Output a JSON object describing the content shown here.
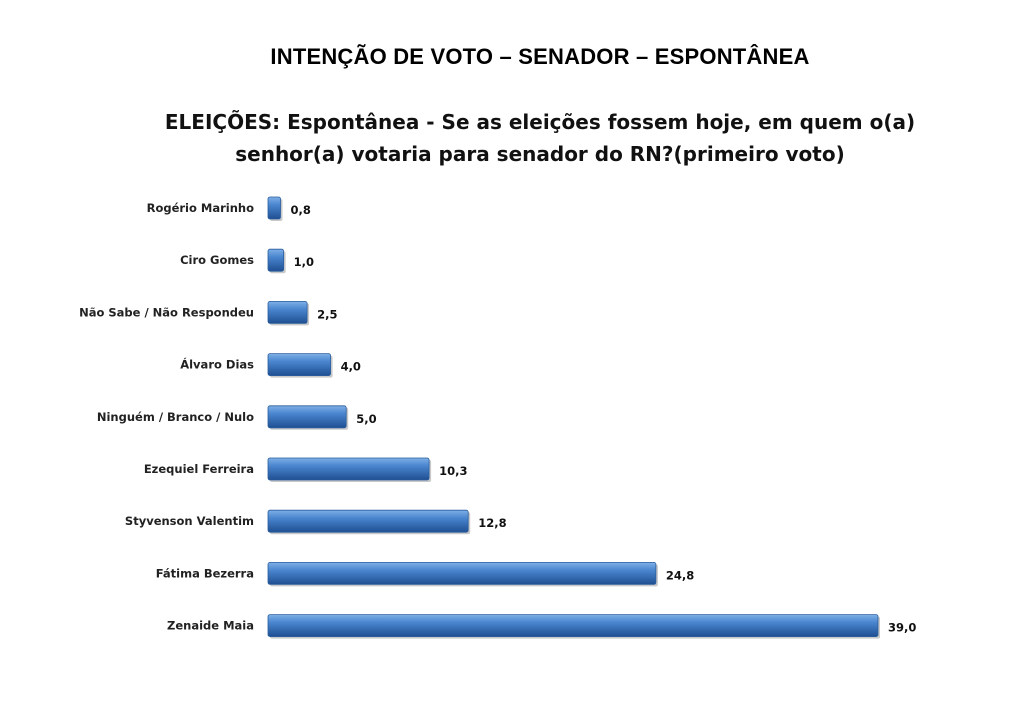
{
  "title": "INTENÇÃO DE VOTO – SENADOR – ESPONTÂNEA",
  "subtitle_line1": "ELEIÇÕES: Espontânea - Se as eleições fossem hoje, em quem o(a)",
  "subtitle_line2": "senhor(a) votaria para senador do RN?(primeiro voto)",
  "chart_data": {
    "type": "bar",
    "orientation": "horizontal",
    "categories": [
      "Rogério Marinho",
      "Ciro Gomes",
      "Não Sabe / Não Respondeu",
      "Álvaro Dias",
      "Ninguém / Branco / Nulo",
      "Ezequiel Ferreira",
      "Styvenson Valentim",
      "Fátima Bezerra",
      "Zenaide Maia"
    ],
    "values": [
      0.8,
      1.0,
      2.5,
      4.0,
      5.0,
      10.3,
      12.8,
      24.8,
      39.0
    ],
    "value_labels": [
      "0,8",
      "1,0",
      "2,5",
      "4,0",
      "5,0",
      "10,3",
      "12,8",
      "24,8",
      "39,0"
    ],
    "xlim": [
      0,
      39.0
    ],
    "bar_color": "#3a78c2",
    "grid": false,
    "legend": "none"
  }
}
